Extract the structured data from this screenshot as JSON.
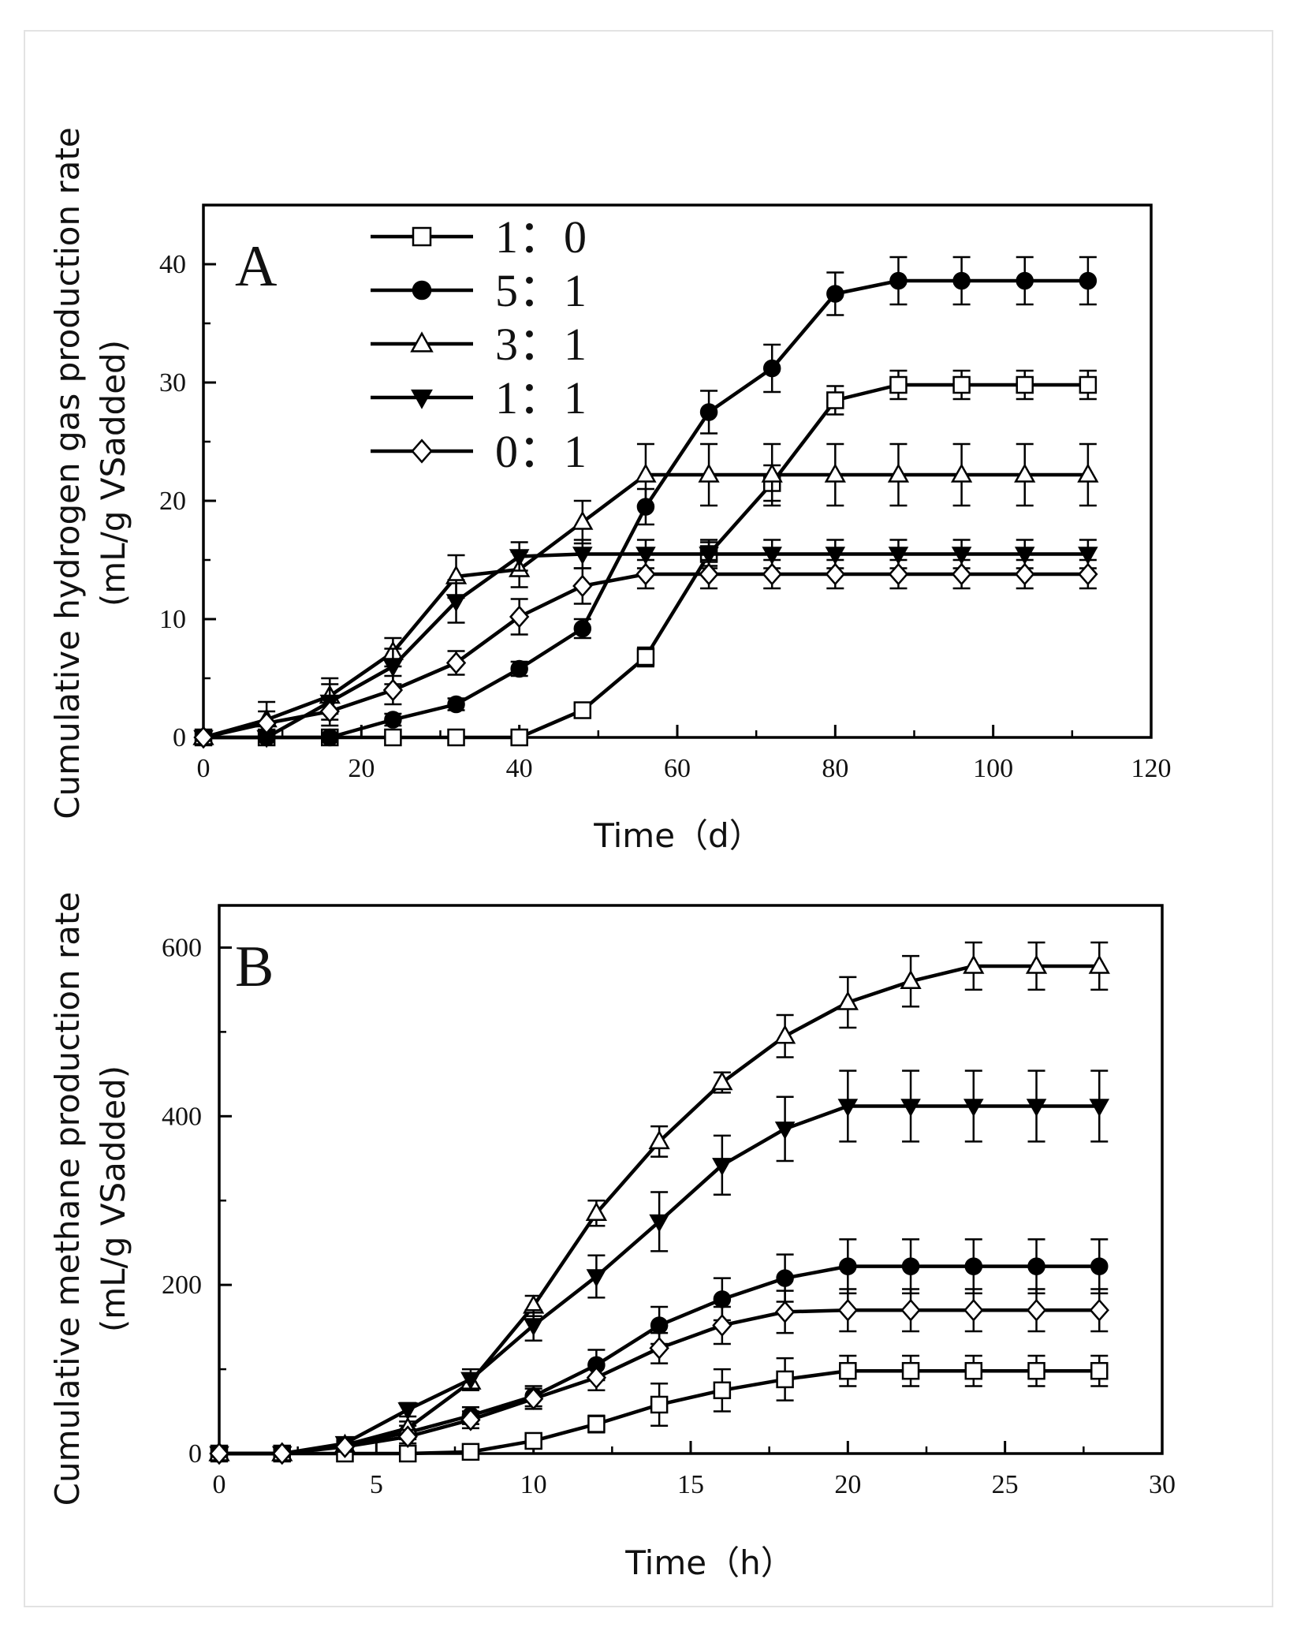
{
  "chart_data": [
    {
      "panel": "A",
      "type": "line",
      "xlabel": "Time（d）",
      "ylabel_line1": "Cumulative hydrogen gas production rate",
      "ylabel_line2": "(mL/g VSadded)",
      "xlim": [
        0,
        120
      ],
      "ylim": [
        0,
        45
      ],
      "xticks": [
        0,
        20,
        40,
        60,
        80,
        100,
        120
      ],
      "yticks": [
        0,
        10,
        20,
        30,
        40
      ],
      "legend_position": "top-center",
      "x": [
        0,
        8,
        16,
        24,
        32,
        40,
        48,
        56,
        64,
        72,
        80,
        88,
        96,
        104,
        112
      ],
      "series": [
        {
          "name": "1：0",
          "marker": "square-open",
          "values": [
            0,
            0,
            0,
            0,
            0,
            0,
            2.3,
            6.8,
            15.5,
            21.5,
            28.5,
            29.8,
            29.8,
            29.8,
            29.8
          ],
          "errors": [
            0,
            0,
            0,
            0,
            0,
            0,
            0.5,
            0.8,
            1.0,
            1.5,
            1.2,
            1.2,
            1.2,
            1.2,
            1.2
          ]
        },
        {
          "name": "5：1",
          "marker": "circle-filled",
          "values": [
            0,
            0,
            0,
            1.5,
            2.8,
            5.8,
            9.2,
            19.5,
            27.5,
            31.2,
            37.5,
            38.6,
            38.6,
            38.6,
            38.6
          ],
          "errors": [
            0,
            0,
            0,
            0.5,
            0.5,
            0.6,
            0.8,
            1.5,
            1.8,
            2.0,
            1.8,
            2.0,
            2.0,
            2.0,
            2.0
          ]
        },
        {
          "name": "3：1",
          "marker": "triangle-up-open",
          "values": [
            0,
            1.5,
            3.5,
            7.2,
            13.6,
            14.2,
            18.2,
            22.2,
            22.2,
            22.2,
            22.2,
            22.2,
            22.2,
            22.2,
            22.2
          ],
          "errors": [
            0,
            1.5,
            1.5,
            1.2,
            1.8,
            1.5,
            1.8,
            2.6,
            2.6,
            2.6,
            2.6,
            2.6,
            2.6,
            2.6,
            2.6
          ]
        },
        {
          "name": "1：1",
          "marker": "triangle-down-filled",
          "values": [
            0,
            0,
            3.0,
            6.0,
            11.5,
            15.3,
            15.5,
            15.5,
            15.5,
            15.5,
            15.5,
            15.5,
            15.5,
            15.5,
            15.5
          ],
          "errors": [
            0,
            0,
            1.5,
            1.5,
            1.8,
            1.2,
            1.2,
            1.2,
            1.2,
            1.2,
            1.2,
            1.2,
            1.2,
            1.2,
            1.2
          ]
        },
        {
          "name": "0：1",
          "marker": "diamond-open",
          "values": [
            0,
            1.2,
            2.2,
            4.0,
            6.3,
            10.2,
            12.8,
            13.8,
            13.8,
            13.8,
            13.8,
            13.8,
            13.8,
            13.8,
            13.8
          ],
          "errors": [
            0,
            1.0,
            1.2,
            1.2,
            1.0,
            1.5,
            1.5,
            1.2,
            1.2,
            1.2,
            1.2,
            1.2,
            1.2,
            1.2,
            1.2
          ]
        }
      ]
    },
    {
      "panel": "B",
      "type": "line",
      "xlabel": "Time（h）",
      "ylabel_line1": "Cumulative methane production rate",
      "ylabel_line2": "(mL/g VSadded)",
      "xlim": [
        0,
        30
      ],
      "ylim": [
        0,
        650
      ],
      "xticks": [
        0,
        5,
        10,
        15,
        20,
        25,
        30
      ],
      "yticks": [
        0,
        200,
        400,
        600
      ],
      "x": [
        0,
        2,
        4,
        6,
        8,
        10,
        12,
        14,
        16,
        18,
        20,
        22,
        24,
        26,
        28
      ],
      "series": [
        {
          "name": "1：0",
          "marker": "square-open",
          "values": [
            0,
            0,
            0,
            0,
            2,
            15,
            35,
            58,
            75,
            88,
            98,
            98,
            98,
            98,
            98
          ],
          "errors": [
            0,
            0,
            0,
            0,
            5,
            8,
            10,
            25,
            25,
            25,
            18,
            18,
            18,
            18,
            18
          ]
        },
        {
          "name": "5：1",
          "marker": "circle-filled",
          "values": [
            0,
            0,
            10,
            25,
            45,
            68,
            105,
            152,
            183,
            208,
            222,
            222,
            222,
            222,
            222
          ],
          "errors": [
            0,
            0,
            5,
            8,
            10,
            12,
            18,
            22,
            25,
            28,
            32,
            32,
            32,
            32,
            32
          ]
        },
        {
          "name": "3：1",
          "marker": "triangle-up-open",
          "values": [
            0,
            0,
            10,
            30,
            85,
            175,
            285,
            370,
            440,
            495,
            535,
            560,
            578,
            578,
            578
          ],
          "errors": [
            0,
            0,
            5,
            8,
            10,
            12,
            15,
            18,
            12,
            25,
            30,
            30,
            28,
            28,
            28
          ]
        },
        {
          "name": "1：1",
          "marker": "triangle-down-filled",
          "values": [
            0,
            0,
            12,
            52,
            88,
            152,
            210,
            275,
            342,
            385,
            412,
            412,
            412,
            412,
            412
          ],
          "errors": [
            0,
            0,
            5,
            8,
            12,
            18,
            25,
            35,
            35,
            38,
            42,
            42,
            42,
            42,
            42
          ]
        },
        {
          "name": "0：1",
          "marker": "diamond-open",
          "values": [
            0,
            0,
            8,
            20,
            40,
            65,
            90,
            125,
            152,
            168,
            170,
            170,
            170,
            170,
            170
          ],
          "errors": [
            0,
            0,
            5,
            8,
            10,
            12,
            15,
            18,
            22,
            25,
            25,
            25,
            25,
            25,
            25
          ]
        }
      ]
    }
  ]
}
